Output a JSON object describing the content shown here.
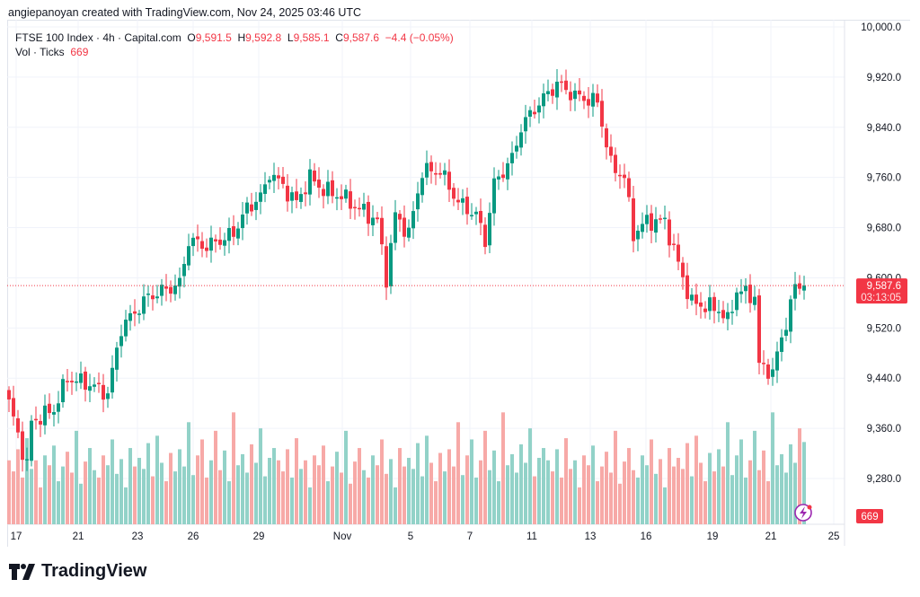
{
  "credit": "angiepanoyan created with TradingView.com, Nov 24, 2025 03:46 UTC",
  "legend": {
    "symbol": "FTSE 100 Index · 4h · Capital.com",
    "o_label": "O",
    "o": "9,591.5",
    "h_label": "H",
    "h": "9,592.8",
    "l_label": "L",
    "l": "9,585.1",
    "c_label": "C",
    "c": "9,587.6",
    "change": "−4.4 (−0.05%)",
    "vol_label": "Vol · Ticks",
    "vol": "669"
  },
  "logo_text": "TradingView",
  "colors": {
    "up": "#089981",
    "down": "#f23645",
    "up_vol": "#92d2c8",
    "down_vol": "#f7a9a7"
  },
  "chart_data": {
    "type": "candlestick",
    "title": "FTSE 100 Index · 4h · Capital.com",
    "ylim": [
      9200,
      10000
    ],
    "y_ticks": [
      "10,000.0",
      "9,920.0",
      "9,840.0",
      "9,760.0",
      "9,680.0",
      "9,600.0",
      "9,520.0",
      "9,440.0",
      "9,360.0",
      "9,280.0"
    ],
    "y_tick_values": [
      10000,
      9920,
      9840,
      9760,
      9680,
      9600,
      9520,
      9440,
      9360,
      9280
    ],
    "x_ticks": [
      {
        "label": "17",
        "index": 1.6
      },
      {
        "label": "21",
        "index": 15.4
      },
      {
        "label": "23",
        "index": 28.6
      },
      {
        "label": "26",
        "index": 41
      },
      {
        "label": "29",
        "index": 55.6
      },
      {
        "label": "Nov",
        "index": 74.2
      },
      {
        "label": "5",
        "index": 89.4
      },
      {
        "label": "7",
        "index": 102.6
      },
      {
        "label": "11",
        "index": 116.4
      },
      {
        "label": "13",
        "index": 129.4
      },
      {
        "label": "16",
        "index": 141.8
      },
      {
        "label": "19",
        "index": 156.6
      },
      {
        "label": "21",
        "index": 169.6
      },
      {
        "label": "25",
        "index": 183.6
      }
    ],
    "candle_count": 178,
    "close_keypoints": [
      [
        0,
        9400
      ],
      [
        4,
        9300
      ],
      [
        5,
        9370
      ],
      [
        10,
        9390
      ],
      [
        13,
        9440
      ],
      [
        18,
        9430
      ],
      [
        22,
        9415
      ],
      [
        25,
        9520
      ],
      [
        31,
        9570
      ],
      [
        38,
        9590
      ],
      [
        40,
        9660
      ],
      [
        44,
        9650
      ],
      [
        50,
        9670
      ],
      [
        52,
        9700
      ],
      [
        57,
        9740
      ],
      [
        58,
        9770
      ],
      [
        64,
        9720
      ],
      [
        67,
        9760
      ],
      [
        70,
        9740
      ],
      [
        74,
        9730
      ],
      [
        78,
        9710
      ],
      [
        82,
        9690
      ],
      [
        84,
        9600
      ],
      [
        86,
        9700
      ],
      [
        89,
        9670
      ],
      [
        92,
        9770
      ],
      [
        96,
        9770
      ],
      [
        100,
        9720
      ],
      [
        104,
        9700
      ],
      [
        106,
        9660
      ],
      [
        108,
        9750
      ],
      [
        112,
        9790
      ],
      [
        114,
        9840
      ],
      [
        117,
        9870
      ],
      [
        122,
        9910
      ],
      [
        126,
        9890
      ],
      [
        131,
        9880
      ],
      [
        134,
        9780
      ],
      [
        137,
        9760
      ],
      [
        139,
        9670
      ],
      [
        142,
        9690
      ],
      [
        146,
        9690
      ],
      [
        150,
        9600
      ],
      [
        152,
        9560
      ],
      [
        158,
        9550
      ],
      [
        160,
        9530
      ],
      [
        162,
        9580
      ],
      [
        166,
        9570
      ],
      [
        167,
        9460
      ],
      [
        170,
        9450
      ],
      [
        173,
        9530
      ],
      [
        175,
        9585
      ],
      [
        177,
        9587.6
      ]
    ],
    "last_price": "9,587.6",
    "countdown": "03:13:05",
    "volume_last": "669",
    "volume_pattern": [
      520,
      430,
      610,
      380,
      700,
      450,
      520,
      300,
      560,
      480,
      640,
      350,
      470,
      590,
      420,
      760,
      330,
      510,
      620,
      440,
      380,
      560,
      480,
      690,
      410,
      530,
      300,
      620,
      470,
      540,
      450,
      660,
      390,
      720,
      500,
      350,
      580,
      430,
      610,
      470,
      830,
      400,
      560,
      690,
      380,
      520,
      760,
      440,
      600,
      350,
      910,
      480,
      570,
      420,
      650,
      500,
      780,
      390,
      540,
      620
    ]
  }
}
